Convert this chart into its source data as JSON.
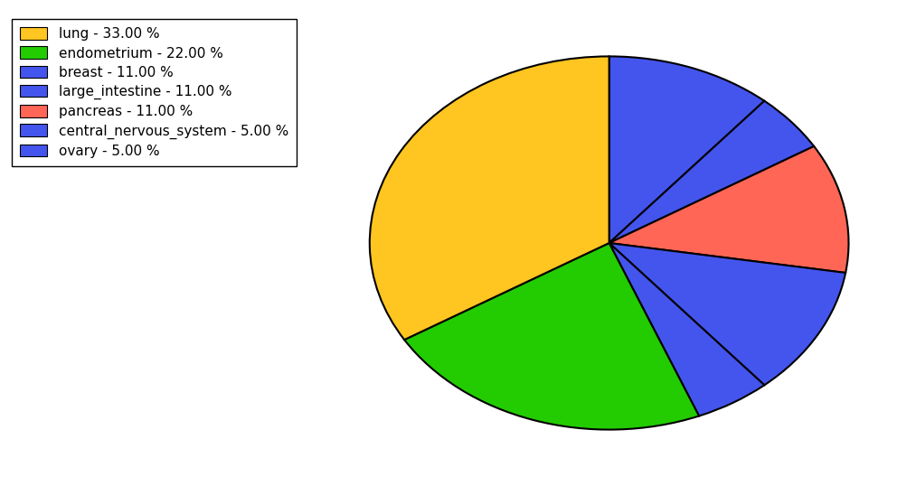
{
  "labels": [
    "lung",
    "endometrium",
    "breast",
    "large_intestine",
    "pancreas",
    "central_nervous_system",
    "ovary"
  ],
  "values": [
    33.0,
    22.0,
    11.0,
    11.0,
    11.0,
    5.0,
    5.0
  ],
  "slice_colors": [
    "#FFC520",
    "#22CC00",
    "#4455EE",
    "#4455EE",
    "#FF6655",
    "#4455EE",
    "#4455EE"
  ],
  "legend_labels": [
    "lung - 33.00 %",
    "endometrium - 22.00 %",
    "breast - 11.00 %",
    "large_intestine - 11.00 %",
    "pancreas - 11.00 %",
    "central_nervous_system - 5.00 %",
    "ovary - 5.00 %"
  ],
  "legend_colors": [
    "#FFC520",
    "#22CC00",
    "#4455EE",
    "#4455EE",
    "#FF6655",
    "#4455EE",
    "#4455EE"
  ],
  "background_color": "#ffffff",
  "figsize": [
    10.13,
    5.38
  ],
  "dpi": 100,
  "startangle": 90,
  "pie_order": [
    "breast",
    "central_nervous_system",
    "pancreas",
    "large_intestine",
    "ovary",
    "endometrium",
    "lung"
  ]
}
